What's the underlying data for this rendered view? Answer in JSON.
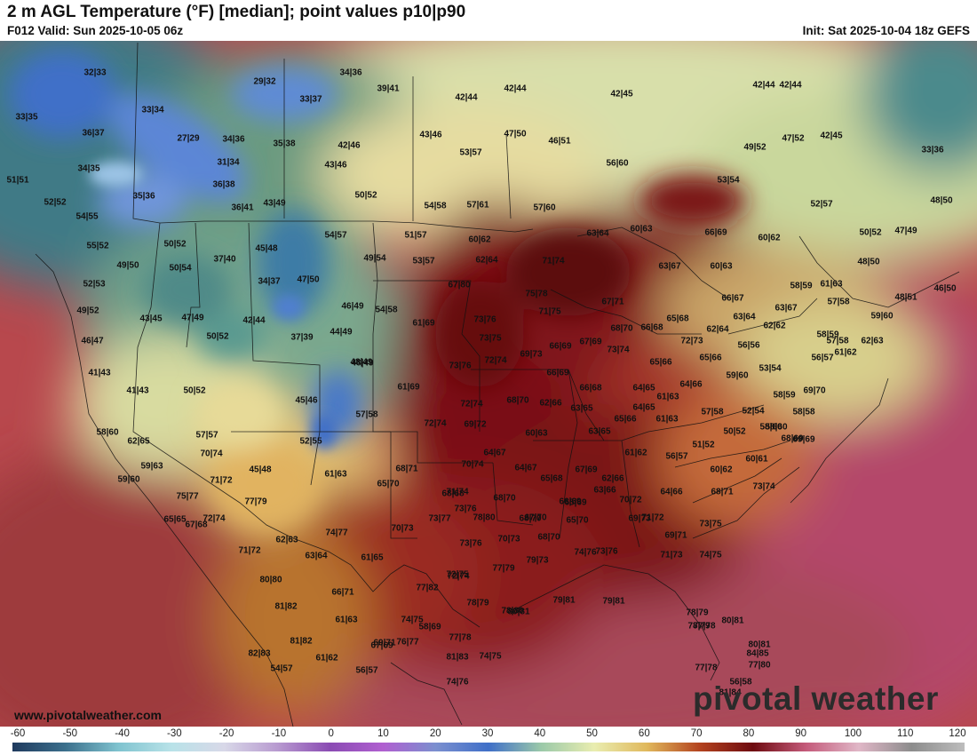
{
  "header": {
    "title": "2 m AGL Temperature (°F) [median]; point values p10|p90",
    "valid": "F012 Valid: Sun 2025-10-05 06z",
    "init": "Init: Sat 2025-10-04 18z GEFS"
  },
  "footer": {
    "website": "www.pivotalweather.com",
    "brand": "pivotal weather"
  },
  "colorbar": {
    "ticks": [
      "-60",
      "-50",
      "-40",
      "-30",
      "-20",
      "-10",
      "0",
      "10",
      "20",
      "30",
      "40",
      "50",
      "60",
      "70",
      "80",
      "90",
      "100",
      "110",
      "120"
    ],
    "stops": [
      "#1f3a5e",
      "#3b6f8c",
      "#7fc3cf",
      "#b8e2e8",
      "#d8d8e8",
      "#b89bd0",
      "#8a4bb3",
      "#b05fd0",
      "#7b8fcf",
      "#3f6fc8",
      "#9bc9a9",
      "#e9edb0",
      "#e0b85c",
      "#b3421e",
      "#6e0b10",
      "#c45a7a",
      "#e0b7c7",
      "#8c8c8c",
      "#bdbdbd"
    ]
  },
  "map": {
    "colors": {
      "ocean_warm": "#b64a4e",
      "cold_blue": "#3f6fc8",
      "teal": "#3c7e78",
      "yellow_green": "#cfe09a",
      "tan": "#e0b060",
      "dark_red": "#6e0b10",
      "maroon": "#8c1a1a"
    },
    "point_values": [
      {
        "t": "32|33"
      },
      {
        "t": "29|32"
      },
      {
        "t": "34|36"
      },
      {
        "t": "39|41"
      },
      {
        "t": "42|44"
      },
      {
        "t": "42|44"
      },
      {
        "t": "42|45"
      },
      {
        "t": "42|44"
      },
      {
        "t": "33|35"
      },
      {
        "t": "33|34"
      },
      {
        "t": "33|37"
      },
      {
        "t": "42|44"
      },
      {
        "t": "36|37"
      },
      {
        "t": "27|29"
      },
      {
        "t": "34|36"
      },
      {
        "t": "35|38"
      },
      {
        "t": "42|46"
      },
      {
        "t": "43|46"
      },
      {
        "t": "47|50"
      },
      {
        "t": "46|51"
      },
      {
        "t": "49|52"
      },
      {
        "t": "47|52"
      },
      {
        "t": "42|45"
      },
      {
        "t": "33|36"
      },
      {
        "t": "53|57"
      },
      {
        "t": "34|35"
      },
      {
        "t": "31|34"
      },
      {
        "t": "43|46"
      },
      {
        "t": "56|60"
      },
      {
        "t": "51|51"
      },
      {
        "t": "36|38"
      },
      {
        "t": "53|54"
      },
      {
        "t": "35|36"
      },
      {
        "t": "50|52"
      },
      {
        "t": "52|52"
      },
      {
        "t": "36|41"
      },
      {
        "t": "43|49"
      },
      {
        "t": "54|58"
      },
      {
        "t": "57|61"
      },
      {
        "t": "57|60"
      },
      {
        "t": "52|57"
      },
      {
        "t": "48|50"
      },
      {
        "t": "54|55"
      },
      {
        "t": "51|57"
      },
      {
        "t": "60|62"
      },
      {
        "t": "60|63"
      },
      {
        "t": "66|69"
      },
      {
        "t": "60|62"
      },
      {
        "t": "50|52"
      },
      {
        "t": "47|49"
      },
      {
        "t": "54|57"
      },
      {
        "t": "63|64"
      },
      {
        "t": "55|52"
      },
      {
        "t": "50|52"
      },
      {
        "t": "45|48"
      },
      {
        "t": "62|64"
      },
      {
        "t": "71|74"
      },
      {
        "t": "48|50"
      },
      {
        "t": "49|54"
      },
      {
        "t": "53|57"
      },
      {
        "t": "49|50"
      },
      {
        "t": "37|40"
      },
      {
        "t": "50|54"
      },
      {
        "t": "63|67"
      },
      {
        "t": "60|63"
      },
      {
        "t": "47|50"
      },
      {
        "t": "52|53"
      },
      {
        "t": "34|37"
      },
      {
        "t": "67|80"
      },
      {
        "t": "58|59"
      },
      {
        "t": "61|63"
      },
      {
        "t": "46|50"
      },
      {
        "t": "48|51"
      },
      {
        "t": "75|78"
      },
      {
        "t": "66|67"
      },
      {
        "t": "57|58"
      },
      {
        "t": "49|52"
      },
      {
        "t": "46|49"
      },
      {
        "t": "54|58"
      },
      {
        "t": "67|71"
      },
      {
        "t": "63|67"
      },
      {
        "t": "43|45"
      },
      {
        "t": "47|49"
      },
      {
        "t": "71|75"
      },
      {
        "t": "65|68"
      },
      {
        "t": "42|44"
      },
      {
        "t": "73|76"
      },
      {
        "t": "61|69"
      },
      {
        "t": "63|64"
      },
      {
        "t": "59|60"
      },
      {
        "t": "46|47"
      },
      {
        "t": "37|39"
      },
      {
        "t": "44|49"
      },
      {
        "t": "48|49"
      },
      {
        "t": "68|70"
      },
      {
        "t": "66|68"
      },
      {
        "t": "62|62"
      },
      {
        "t": "62|64"
      },
      {
        "t": "58|59"
      },
      {
        "t": "73|75"
      },
      {
        "t": "72|73"
      },
      {
        "t": "62|63"
      },
      {
        "t": "66|69"
      },
      {
        "t": "67|69"
      },
      {
        "t": "56|56"
      },
      {
        "t": "69|73"
      },
      {
        "t": "73|74"
      },
      {
        "t": "65|66"
      },
      {
        "t": "56|57"
      },
      {
        "t": "61|62"
      },
      {
        "t": "57|58"
      },
      {
        "t": "50|52"
      },
      {
        "t": "48|49"
      },
      {
        "t": "73|76"
      },
      {
        "t": "72|74"
      },
      {
        "t": "66|69"
      },
      {
        "t": "65|66"
      },
      {
        "t": "53|54"
      },
      {
        "t": "59|60"
      },
      {
        "t": "41|43"
      },
      {
        "t": "41|43"
      },
      {
        "t": "50|52"
      },
      {
        "t": "61|69"
      },
      {
        "t": "66|68"
      },
      {
        "t": "64|65"
      },
      {
        "t": "64|66"
      },
      {
        "t": "58|59"
      },
      {
        "t": "69|70"
      },
      {
        "t": "45|46"
      },
      {
        "t": "68|70"
      },
      {
        "t": "62|66"
      },
      {
        "t": "61|63"
      },
      {
        "t": "72|74"
      },
      {
        "t": "63|65"
      },
      {
        "t": "64|65"
      },
      {
        "t": "57|58"
      },
      {
        "t": "52|54"
      },
      {
        "t": "58|58"
      },
      {
        "t": "58|60"
      },
      {
        "t": "57|58"
      },
      {
        "t": "72|74"
      },
      {
        "t": "69|72"
      },
      {
        "t": "65|66"
      },
      {
        "t": "61|63"
      },
      {
        "t": "58|60"
      },
      {
        "t": "69|69"
      },
      {
        "t": "60|63"
      },
      {
        "t": "63|65"
      },
      {
        "t": "50|52"
      },
      {
        "t": "57|57"
      },
      {
        "t": "52|55"
      },
      {
        "t": "51|52"
      },
      {
        "t": "58|60"
      },
      {
        "t": "62|65"
      },
      {
        "t": "70|74"
      },
      {
        "t": "64|67"
      },
      {
        "t": "61|62"
      },
      {
        "t": "56|57"
      },
      {
        "t": "60|61"
      },
      {
        "t": "68|69"
      },
      {
        "t": "59|63"
      },
      {
        "t": "45|48"
      },
      {
        "t": "68|71"
      },
      {
        "t": "70|74"
      },
      {
        "t": "64|67"
      },
      {
        "t": "67|69"
      },
      {
        "t": "60|62"
      },
      {
        "t": "59|60"
      },
      {
        "t": "71|72"
      },
      {
        "t": "61|63"
      },
      {
        "t": "65|70"
      },
      {
        "t": "65|68"
      },
      {
        "t": "62|66"
      },
      {
        "t": "73|74"
      },
      {
        "t": "68|68"
      },
      {
        "t": "75|77"
      },
      {
        "t": "77|79"
      },
      {
        "t": "71|74"
      },
      {
        "t": "68|70"
      },
      {
        "t": "63|66"
      },
      {
        "t": "65|69"
      },
      {
        "t": "64|66"
      },
      {
        "t": "68|71"
      },
      {
        "t": "66|69"
      },
      {
        "t": "70|72"
      },
      {
        "t": "65|65"
      },
      {
        "t": "72|74"
      },
      {
        "t": "73|76"
      },
      {
        "t": "78|80"
      },
      {
        "t": "67|70"
      },
      {
        "t": "71|72"
      },
      {
        "t": "67|68"
      },
      {
        "t": "70|73"
      },
      {
        "t": "73|77"
      },
      {
        "t": "68|70"
      },
      {
        "t": "65|70"
      },
      {
        "t": "69|73"
      },
      {
        "t": "73|75"
      },
      {
        "t": "62|63"
      },
      {
        "t": "74|77"
      },
      {
        "t": "69|71"
      },
      {
        "t": "71|72"
      },
      {
        "t": "73|76"
      },
      {
        "t": "70|73"
      },
      {
        "t": "68|70"
      },
      {
        "t": "63|64"
      },
      {
        "t": "61|65"
      },
      {
        "t": "74|76"
      },
      {
        "t": "73|76"
      },
      {
        "t": "71|73"
      },
      {
        "t": "74|75"
      },
      {
        "t": "77|79"
      },
      {
        "t": "79|73"
      },
      {
        "t": "80|80"
      },
      {
        "t": "72|75"
      },
      {
        "t": "66|71"
      },
      {
        "t": "77|82"
      },
      {
        "t": "72|74"
      },
      {
        "t": "79|81"
      },
      {
        "t": "79|81"
      },
      {
        "t": "78|79"
      },
      {
        "t": "81|82"
      },
      {
        "t": "78|80"
      },
      {
        "t": "78|79"
      },
      {
        "t": "80|81"
      },
      {
        "t": "61|63"
      },
      {
        "t": "74|75"
      },
      {
        "t": "77|78"
      },
      {
        "t": "80|81"
      },
      {
        "t": "67|69"
      },
      {
        "t": "58|69"
      },
      {
        "t": "77|78"
      },
      {
        "t": "78|79"
      },
      {
        "t": "80|81"
      },
      {
        "t": "81|82"
      },
      {
        "t": "76|77"
      },
      {
        "t": "74|75"
      },
      {
        "t": "77|80"
      },
      {
        "t": "77|78"
      },
      {
        "t": "81|83"
      },
      {
        "t": "56|58"
      },
      {
        "t": "82|83"
      },
      {
        "t": "61|62"
      },
      {
        "t": "81|84"
      },
      {
        "t": "84|85"
      },
      {
        "t": "54|57"
      },
      {
        "t": "69|71"
      },
      {
        "t": "74|76"
      },
      {
        "t": "56|57"
      }
    ]
  }
}
